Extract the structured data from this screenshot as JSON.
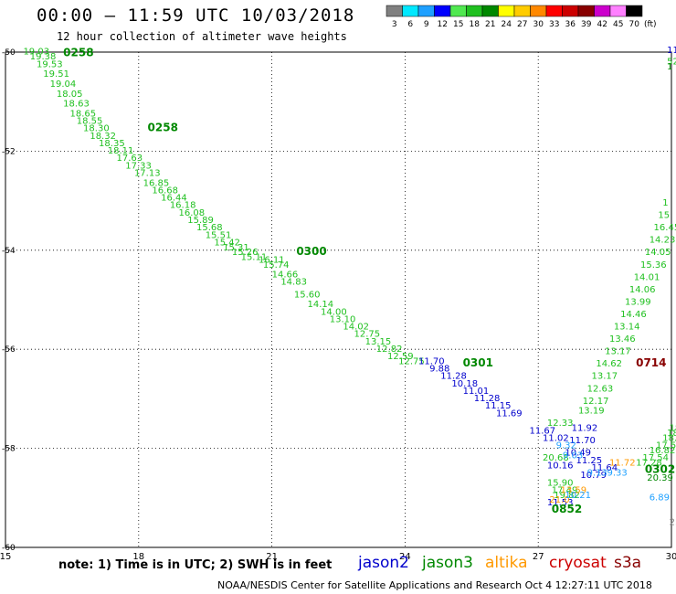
{
  "title": "00:00 – 11:59 UTC 10/03/2018",
  "subtitle": "12 hour collection of altimeter wave heights",
  "note": "note: 1) Time is in UTC; 2) SWH is in feet",
  "credit": "NOAA/NESDIS Center for Satellite Applications and Research   Oct  4 12:27:11 UTC 2018",
  "legend": {
    "unit": "(ft)",
    "bins": [
      {
        "label": "3",
        "color": "#808080"
      },
      {
        "label": "6",
        "color": "#00e8ff"
      },
      {
        "label": "9",
        "color": "#1fa0ff"
      },
      {
        "label": "12",
        "color": "#0000ff"
      },
      {
        "label": "15",
        "color": "#50e850"
      },
      {
        "label": "18",
        "color": "#20c020"
      },
      {
        "label": "21",
        "color": "#008800"
      },
      {
        "label": "24",
        "color": "#ffff00"
      },
      {
        "label": "27",
        "color": "#ffcc00"
      },
      {
        "label": "30",
        "color": "#ff8800"
      },
      {
        "label": "33",
        "color": "#ff0000"
      },
      {
        "label": "36",
        "color": "#cc0000"
      },
      {
        "label": "39",
        "color": "#880000"
      },
      {
        "label": "42",
        "color": "#cc00cc"
      },
      {
        "label": "45",
        "color": "#ff80ff"
      },
      {
        "label": "70",
        "color": "#000000"
      }
    ]
  },
  "satellites": [
    {
      "name": "jason2",
      "color": "#0000cc"
    },
    {
      "name": "jason3",
      "color": "#008800"
    },
    {
      "name": "altika",
      "color": "#ff9900"
    },
    {
      "name": "cryosat",
      "color": "#cc0000"
    },
    {
      "name": "s3a",
      "color": "#880000"
    }
  ],
  "chart_data": {
    "type": "scatter",
    "xlim": [
      15,
      30
    ],
    "ylim": [
      -60,
      -50
    ],
    "xticks": [
      15,
      18,
      21,
      24,
      27,
      30
    ],
    "yticks": [
      -50,
      -52,
      -54,
      -56,
      -58,
      -60
    ],
    "xticks_on_axis": [
      "15",
      "18",
      "21",
      "24",
      "27",
      "30"
    ],
    "yticks_on_axis": [
      "-50",
      "-52",
      "-54",
      "-56",
      "-58",
      "-60"
    ],
    "grid": true,
    "time_labels": [
      {
        "text": "0258",
        "x": 16.3,
        "y": -50.08,
        "color": "#008800"
      },
      {
        "text": "0258",
        "x": 18.2,
        "y": -51.6,
        "color": "#008800"
      },
      {
        "text": "0300",
        "x": 21.55,
        "y": -54.1,
        "color": "#008800"
      },
      {
        "text": "0301",
        "x": 25.3,
        "y": -56.35,
        "color": "#008800"
      },
      {
        "text": "0714",
        "x": 29.2,
        "y": -56.35,
        "color": "#880000"
      },
      {
        "text": "0302",
        "x": 29.4,
        "y": -58.5,
        "color": "#008800"
      },
      {
        "text": "0852",
        "x": 27.3,
        "y": -59.3,
        "color": "#008800"
      }
    ],
    "series": [
      {
        "name": "jason3",
        "color": "#20c020",
        "points": [
          {
            "x": 15.4,
            "y": -50.05,
            "v": "19.03"
          },
          {
            "x": 15.55,
            "y": -50.15,
            "v": "19.38"
          },
          {
            "x": 15.7,
            "y": -50.3,
            "v": "19.53"
          },
          {
            "x": 15.85,
            "y": -50.5,
            "v": "19.51"
          },
          {
            "x": 16.0,
            "y": -50.7,
            "v": "19.04"
          },
          {
            "x": 16.15,
            "y": -50.9,
            "v": "18.05"
          },
          {
            "x": 16.3,
            "y": -51.1,
            "v": "18.63"
          },
          {
            "x": 16.45,
            "y": -51.3,
            "v": "18.65"
          },
          {
            "x": 16.6,
            "y": -51.45,
            "v": "18.55"
          },
          {
            "x": 16.75,
            "y": -51.6,
            "v": "18.30"
          },
          {
            "x": 16.9,
            "y": -51.75,
            "v": "18.32"
          },
          {
            "x": 17.1,
            "y": -51.9,
            "v": "18.35"
          },
          {
            "x": 17.3,
            "y": -52.05,
            "v": "18.11"
          },
          {
            "x": 17.5,
            "y": -52.2,
            "v": "17.63"
          },
          {
            "x": 17.7,
            "y": -52.35,
            "v": "17.33"
          },
          {
            "x": 17.9,
            "y": -52.5,
            "v": "17.13"
          },
          {
            "x": 18.1,
            "y": -52.7,
            "v": "16.85"
          },
          {
            "x": 18.3,
            "y": -52.85,
            "v": "16.68"
          },
          {
            "x": 18.5,
            "y": -53.0,
            "v": "16.44"
          },
          {
            "x": 18.7,
            "y": -53.15,
            "v": "16.18"
          },
          {
            "x": 18.9,
            "y": -53.3,
            "v": "16.08"
          },
          {
            "x": 19.1,
            "y": -53.45,
            "v": "15.89"
          },
          {
            "x": 19.3,
            "y": -53.6,
            "v": "15.68"
          },
          {
            "x": 19.5,
            "y": -53.75,
            "v": "15.51"
          },
          {
            "x": 19.7,
            "y": -53.9,
            "v": "15.42"
          },
          {
            "x": 19.9,
            "y": -54.0,
            "v": "15.31"
          },
          {
            "x": 20.1,
            "y": -54.1,
            "v": "15.26"
          },
          {
            "x": 20.3,
            "y": -54.2,
            "v": "15.11"
          },
          {
            "x": 20.7,
            "y": -54.25,
            "v": "16.11"
          },
          {
            "x": 20.8,
            "y": -54.35,
            "v": "15.74"
          },
          {
            "x": 21.0,
            "y": -54.55,
            "v": "14.66"
          },
          {
            "x": 21.2,
            "y": -54.7,
            "v": "14.83"
          },
          {
            "x": 21.5,
            "y": -54.95,
            "v": "15.60"
          },
          {
            "x": 21.8,
            "y": -55.15,
            "v": "14.14"
          },
          {
            "x": 22.1,
            "y": -55.3,
            "v": "14.00"
          },
          {
            "x": 22.3,
            "y": -55.45,
            "v": "13.10"
          },
          {
            "x": 22.6,
            "y": -55.6,
            "v": "14.02"
          },
          {
            "x": 22.85,
            "y": -55.75,
            "v": "12.75"
          },
          {
            "x": 23.1,
            "y": -55.9,
            "v": "13.15"
          },
          {
            "x": 23.35,
            "y": -56.05,
            "v": "12.82"
          },
          {
            "x": 23.6,
            "y": -56.2,
            "v": "12.59"
          },
          {
            "x": 23.85,
            "y": -56.3,
            "v": "12.75"
          },
          {
            "x": 27.2,
            "y": -57.55,
            "v": "12.33"
          },
          {
            "x": 27.1,
            "y": -58.25,
            "v": "20.68"
          },
          {
            "x": 27.2,
            "y": -58.75,
            "v": "15.90"
          },
          {
            "x": 27.3,
            "y": -58.9,
            "v": "17.49"
          },
          {
            "x": 27.35,
            "y": -59.0,
            "v": "19.82"
          },
          {
            "x": 27.9,
            "y": -57.3,
            "v": "13.19"
          },
          {
            "x": 28.0,
            "y": -57.1,
            "v": "12.17"
          },
          {
            "x": 28.1,
            "y": -56.85,
            "v": "12.63"
          },
          {
            "x": 28.2,
            "y": -56.6,
            "v": "13.17"
          },
          {
            "x": 28.3,
            "y": -56.35,
            "v": "14.62"
          },
          {
            "x": 28.5,
            "y": -56.1,
            "v": "13.17"
          },
          {
            "x": 28.6,
            "y": -55.85,
            "v": "13.46"
          },
          {
            "x": 28.7,
            "y": -55.6,
            "v": "13.14"
          },
          {
            "x": 28.85,
            "y": -55.35,
            "v": "14.46"
          },
          {
            "x": 28.95,
            "y": -55.1,
            "v": "13.99"
          },
          {
            "x": 29.05,
            "y": -54.85,
            "v": "14.06"
          },
          {
            "x": 29.15,
            "y": -54.6,
            "v": "14.01"
          },
          {
            "x": 29.3,
            "y": -54.35,
            "v": "15.36"
          },
          {
            "x": 29.4,
            "y": -54.1,
            "v": "14.05"
          },
          {
            "x": 29.5,
            "y": -53.85,
            "v": "14.23"
          },
          {
            "x": 29.6,
            "y": -53.6,
            "v": "16.45"
          },
          {
            "x": 29.7,
            "y": -53.35,
            "v": "15"
          },
          {
            "x": 29.8,
            "y": -53.1,
            "v": "1"
          },
          {
            "x": 29.2,
            "y": -58.35,
            "v": "17.28"
          },
          {
            "x": 29.35,
            "y": -58.25,
            "v": "17.54"
          },
          {
            "x": 29.5,
            "y": -58.1,
            "v": "16.82"
          },
          {
            "x": 29.65,
            "y": -58.0,
            "v": "17.54"
          },
          {
            "x": 29.8,
            "y": -57.85,
            "v": "18.29"
          },
          {
            "x": 29.9,
            "y": -57.75,
            "v": "18.24"
          },
          {
            "x": 29.95,
            "y": -57.65,
            "v": "18.31"
          },
          {
            "x": 29.9,
            "y": -50.25,
            "v": "52"
          }
        ]
      },
      {
        "name": "jason3-21",
        "color": "#008800",
        "points": [
          {
            "x": 29.45,
            "y": -58.65,
            "v": "20.39"
          },
          {
            "x": 29.9,
            "y": -50.35,
            "v": "1"
          }
        ]
      },
      {
        "name": "jason2",
        "color": "#0000cc",
        "points": [
          {
            "x": 24.3,
            "y": -56.3,
            "v": "11.70"
          },
          {
            "x": 24.55,
            "y": -56.45,
            "v": "9.88"
          },
          {
            "x": 24.8,
            "y": -56.6,
            "v": "11.28"
          },
          {
            "x": 25.05,
            "y": -56.75,
            "v": "10.18"
          },
          {
            "x": 25.3,
            "y": -56.9,
            "v": "11.01"
          },
          {
            "x": 25.55,
            "y": -57.05,
            "v": "11.28"
          },
          {
            "x": 25.8,
            "y": -57.2,
            "v": "11.15"
          },
          {
            "x": 26.05,
            "y": -57.35,
            "v": "11.69"
          },
          {
            "x": 26.8,
            "y": -57.7,
            "v": "11.67"
          },
          {
            "x": 27.1,
            "y": -57.85,
            "v": "11.02"
          },
          {
            "x": 27.75,
            "y": -57.65,
            "v": "11.92"
          },
          {
            "x": 27.7,
            "y": -57.9,
            "v": "11.70"
          },
          {
            "x": 27.6,
            "y": -58.15,
            "v": "10.49"
          },
          {
            "x": 27.2,
            "y": -58.4,
            "v": "10.16"
          },
          {
            "x": 27.85,
            "y": -58.3,
            "v": "11.25"
          },
          {
            "x": 28.2,
            "y": -58.45,
            "v": "11.64"
          },
          {
            "x": 27.95,
            "y": -58.6,
            "v": "10.79"
          },
          {
            "x": 27.2,
            "y": -59.15,
            "v": "11.53"
          },
          {
            "x": 29.9,
            "y": -50.02,
            "v": "11."
          }
        ]
      },
      {
        "name": "altika",
        "color": "#ff9900",
        "points": [
          {
            "x": 28.6,
            "y": -58.35,
            "v": "11.72"
          },
          {
            "x": 27.5,
            "y": -58.9,
            "v": "13.59"
          },
          {
            "x": 27.25,
            "y": -59.1,
            "v": "21.0"
          }
        ]
      },
      {
        "name": "cryosat",
        "color": "#1fa0ff",
        "points": [
          {
            "x": 27.4,
            "y": -58.0,
            "v": "9.32"
          },
          {
            "x": 27.55,
            "y": -58.2,
            "v": "9.03"
          },
          {
            "x": 28.1,
            "y": -58.55,
            "v": "9.13"
          },
          {
            "x": 28.55,
            "y": -58.55,
            "v": "9.33"
          },
          {
            "x": 29.5,
            "y": -59.05,
            "v": "6.89"
          },
          {
            "x": 27.6,
            "y": -59.0,
            "v": "10.21"
          }
        ]
      },
      {
        "name": "grey",
        "color": "#808080",
        "points": [
          {
            "x": 29.95,
            "y": -59.55,
            "v": "2."
          }
        ]
      }
    ]
  }
}
